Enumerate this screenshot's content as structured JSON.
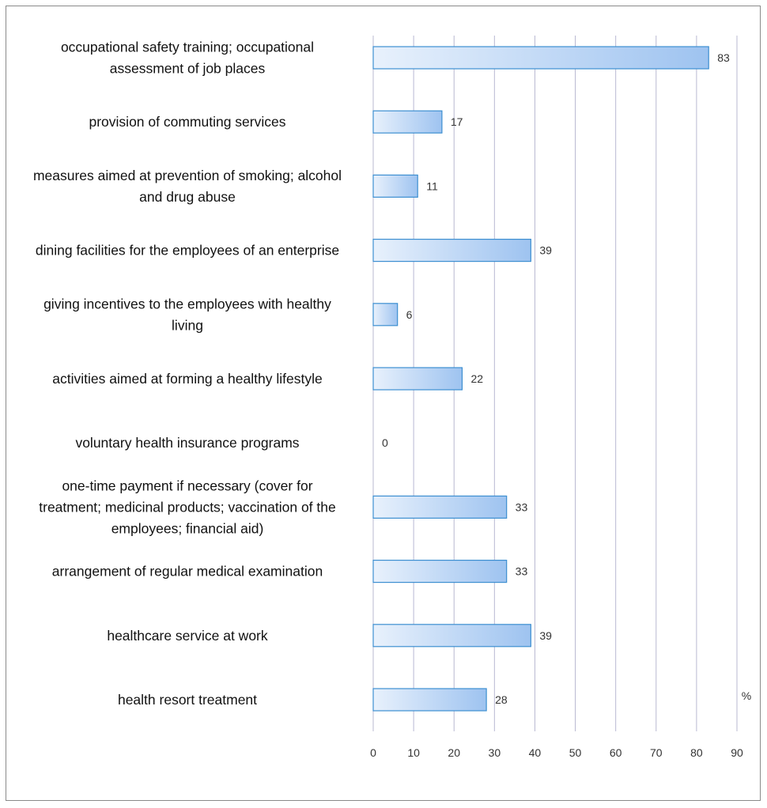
{
  "chart_data": {
    "type": "bar",
    "orientation": "horizontal",
    "categories": [
      "occupational safety training; occupational assessment of job places",
      "provision of commuting services",
      "measures aimed at prevention of smoking; alcohol and drug abuse",
      "dining facilities for the employees of an enterprise",
      "giving incentives to the employees with healthy living",
      "activities aimed at forming a healthy lifestyle",
      "voluntary health insurance programs",
      "one-time payment if necessary (cover for treatment; medicinal products; vaccination of the employees; financial aid)",
      "arrangement of regular medical examination",
      "healthcare service at work",
      "health resort treatment"
    ],
    "category_lines": [
      [
        "occupational safety training; occupational",
        "assessment of job places"
      ],
      [
        "provision of commuting services"
      ],
      [
        "measures aimed at prevention of smoking; alcohol",
        "and drug abuse"
      ],
      [
        "dining facilities for the employees of an enterprise"
      ],
      [
        "giving incentives to the employees with healthy",
        "living"
      ],
      [
        "activities aimed at forming a healthy lifestyle"
      ],
      [
        "voluntary health insurance programs"
      ],
      [
        "one-time payment if necessary (cover for",
        "treatment; medicinal products; vaccination of the",
        "employees; financial aid)"
      ],
      [
        "arrangement of regular medical examination"
      ],
      [
        "healthcare service at work"
      ],
      [
        "health resort treatment"
      ]
    ],
    "values": [
      83,
      17,
      11,
      39,
      6,
      22,
      0,
      33,
      33,
      39,
      28
    ],
    "value_labels": [
      "83",
      "17",
      "11",
      "39",
      "6",
      "22",
      "0",
      "33",
      "33",
      "39",
      "28"
    ],
    "xlim": [
      0,
      90
    ],
    "xticks": [
      "0",
      "10",
      "20",
      "30",
      "40",
      "50",
      "60",
      "70",
      "80",
      "90"
    ],
    "xlabel": "%",
    "ylabel": "",
    "title": "",
    "grid": "vertical",
    "legend": "none",
    "colors": {
      "bar_fill_start": "#e8f1fc",
      "bar_fill_end": "#9ec3f0",
      "bar_stroke": "#3d8fd1",
      "gridline": "#b8b8d2",
      "text": "#111111"
    }
  }
}
